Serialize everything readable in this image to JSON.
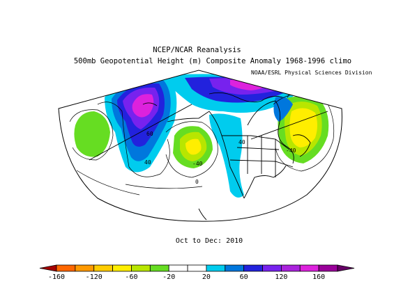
{
  "header": {
    "title_line1": "NCEP/NCAR Reanalysis",
    "title_line2": "500mb Geopotential Height (m) Composite Anomaly 1968-1996 climo",
    "credit": "NOAA/ESRL Physical Sciences Division"
  },
  "footer": {
    "period": "Oct to Dec: 2010"
  },
  "contour_labels": [
    "60",
    "40",
    "-40",
    "0",
    "40",
    "-40"
  ],
  "colorbar": {
    "ticks": [
      "-160",
      "-120",
      "-60",
      "-20",
      "20",
      "60",
      "120",
      "160"
    ],
    "colors": [
      "#a60000",
      "#ff6600",
      "#ff9900",
      "#ffcc00",
      "#ffee00",
      "#b8e600",
      "#66dd22",
      "#ffffff",
      "#ffffff",
      "#00ccee",
      "#0077dd",
      "#2222dd",
      "#7722ee",
      "#aa22dd",
      "#dd22dd",
      "#990099",
      "#660066"
    ]
  }
}
